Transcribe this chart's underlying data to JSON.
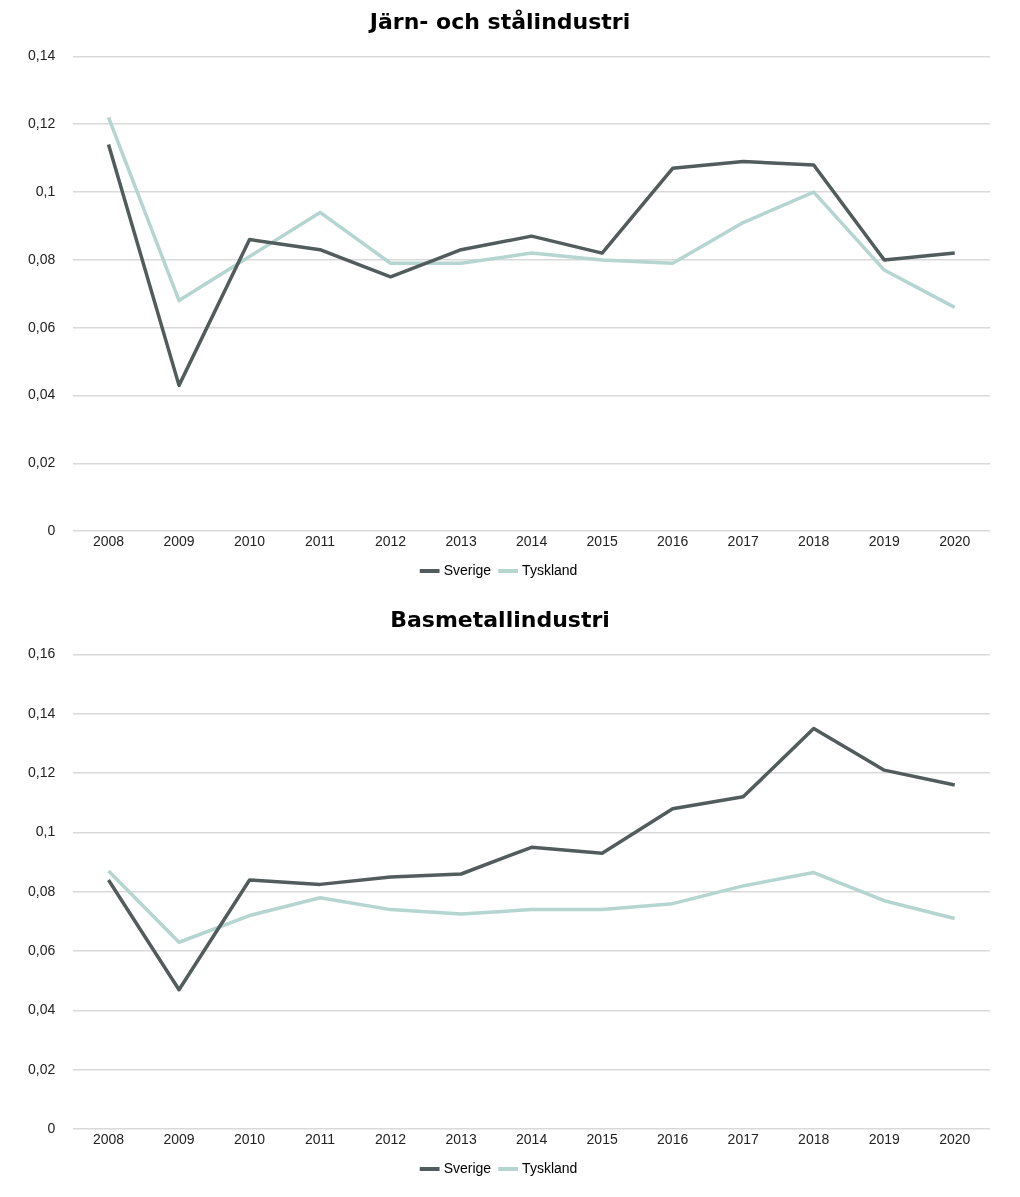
{
  "chart_data": [
    {
      "type": "line",
      "title": "Järn- och stålindustri",
      "categories": [
        "2008",
        "2009",
        "2010",
        "2011",
        "2012",
        "2013",
        "2014",
        "2015",
        "2016",
        "2017",
        "2018",
        "2019",
        "2020"
      ],
      "series": [
        {
          "name": "Sverige",
          "color": "#525c5c",
          "values": [
            0.114,
            0.043,
            0.086,
            0.083,
            0.075,
            0.083,
            0.087,
            0.082,
            0.107,
            0.109,
            0.108,
            0.08,
            0.082
          ]
        },
        {
          "name": "Tyskland",
          "color": "#b5d5d0",
          "values": [
            0.122,
            0.068,
            0.081,
            0.094,
            0.079,
            0.079,
            0.082,
            0.08,
            0.079,
            0.091,
            0.1,
            0.077,
            0.066
          ]
        }
      ],
      "ylim": [
        0,
        0.14
      ],
      "yticks": [
        0,
        {
          "value": 0.02,
          "label": "0,02"
        },
        {
          "value": 0.04,
          "label": "0,04"
        },
        {
          "value": 0.06,
          "label": "0,06"
        },
        {
          "value": 0.08,
          "label": "0,08"
        },
        {
          "value": 0.1,
          "label": "0,1"
        },
        {
          "value": 0.12,
          "label": "0,12"
        },
        {
          "value": 0.14,
          "label": "0,14"
        }
      ],
      "grid": "y",
      "legend": "bottom",
      "marker": "none",
      "line_style": "solid"
    },
    {
      "type": "line",
      "title": "Basmetallindustri",
      "categories": [
        "2008",
        "2009",
        "2010",
        "2011",
        "2012",
        "2013",
        "2014",
        "2015",
        "2016",
        "2017",
        "2018",
        "2019",
        "2020"
      ],
      "series": [
        {
          "name": "Sverige",
          "color": "#525c5c",
          "values": [
            0.084,
            0.047,
            0.084,
            0.0825,
            0.085,
            0.086,
            0.095,
            0.093,
            0.108,
            0.112,
            0.135,
            0.121,
            0.116
          ]
        },
        {
          "name": "Tyskland",
          "color": "#b5d5d0",
          "values": [
            0.087,
            0.063,
            0.072,
            0.078,
            0.074,
            0.0725,
            0.074,
            0.074,
            0.076,
            0.082,
            0.0865,
            0.077,
            0.071
          ]
        }
      ],
      "ylim": [
        0,
        0.16
      ],
      "yticks": [
        0,
        {
          "value": 0.02,
          "label": "0,02"
        },
        {
          "value": 0.04,
          "label": "0,04"
        },
        {
          "value": 0.06,
          "label": "0,06"
        },
        {
          "value": 0.08,
          "label": "0,08"
        },
        {
          "value": 0.1,
          "label": "0,1"
        },
        {
          "value": 0.12,
          "label": "0,12"
        },
        {
          "value": 0.14,
          "label": "0,14"
        },
        {
          "value": 0.16,
          "label": "0,16"
        }
      ],
      "grid": "y",
      "legend": "bottom",
      "marker": "none",
      "line_style": "solid"
    }
  ]
}
